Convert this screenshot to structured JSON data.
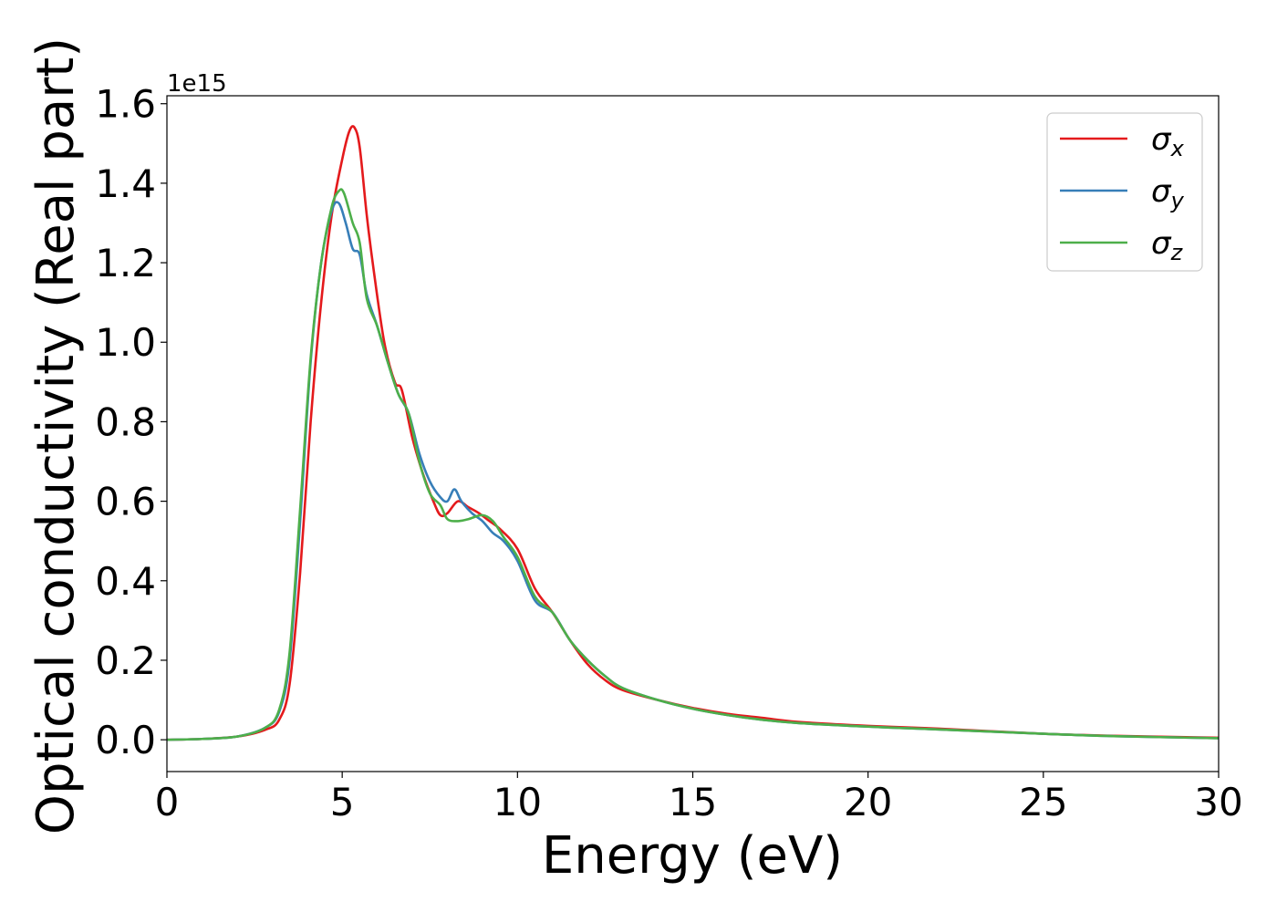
{
  "chart_data": {
    "type": "line",
    "title": "",
    "xlabel": "Energy (eV)",
    "ylabel": "Optical conductivity (Real part)",
    "y_offset_text": "1e15",
    "xlim": [
      0,
      30
    ],
    "ylim": [
      -0.08,
      1.62
    ],
    "x_ticks": [
      0,
      5,
      10,
      15,
      20,
      25,
      30
    ],
    "x_tick_labels": [
      "0",
      "5",
      "10",
      "15",
      "20",
      "25",
      "30"
    ],
    "y_ticks": [
      0.0,
      0.2,
      0.4,
      0.6,
      0.8,
      1.0,
      1.2,
      1.4,
      1.6
    ],
    "y_tick_labels": [
      "0.0",
      "0.2",
      "0.4",
      "0.6",
      "0.8",
      "1.0",
      "1.2",
      "1.4",
      "1.6"
    ],
    "grid": false,
    "legend_position": "top-right",
    "series": [
      {
        "name": "σ",
        "subscript": "x",
        "color": "#e41a1c",
        "points": [
          [
            0,
            0
          ],
          [
            1,
            0.002
          ],
          [
            2,
            0.008
          ],
          [
            2.8,
            0.025
          ],
          [
            3.2,
            0.05
          ],
          [
            3.5,
            0.14
          ],
          [
            3.8,
            0.42
          ],
          [
            4.1,
            0.8
          ],
          [
            4.4,
            1.1
          ],
          [
            4.7,
            1.32
          ],
          [
            5.0,
            1.46
          ],
          [
            5.2,
            1.53
          ],
          [
            5.35,
            1.54
          ],
          [
            5.5,
            1.49
          ],
          [
            5.7,
            1.32
          ],
          [
            5.9,
            1.18
          ],
          [
            6.2,
            1.0
          ],
          [
            6.5,
            0.9
          ],
          [
            6.7,
            0.88
          ],
          [
            7.0,
            0.76
          ],
          [
            7.3,
            0.67
          ],
          [
            7.6,
            0.6
          ],
          [
            7.8,
            0.565
          ],
          [
            8.0,
            0.57
          ],
          [
            8.3,
            0.6
          ],
          [
            8.6,
            0.585
          ],
          [
            8.9,
            0.57
          ],
          [
            9.2,
            0.55
          ],
          [
            9.5,
            0.53
          ],
          [
            10.0,
            0.48
          ],
          [
            10.5,
            0.38
          ],
          [
            11.0,
            0.32
          ],
          [
            11.5,
            0.25
          ],
          [
            12.0,
            0.19
          ],
          [
            12.5,
            0.15
          ],
          [
            13.0,
            0.125
          ],
          [
            14.0,
            0.1
          ],
          [
            15.0,
            0.08
          ],
          [
            16.0,
            0.065
          ],
          [
            17.0,
            0.055
          ],
          [
            18.0,
            0.045
          ],
          [
            20.0,
            0.035
          ],
          [
            22.0,
            0.028
          ],
          [
            25.0,
            0.015
          ],
          [
            27.0,
            0.01
          ],
          [
            30.0,
            0.005
          ]
        ]
      },
      {
        "name": "σ",
        "subscript": "y",
        "color": "#377eb8",
        "points": [
          [
            0,
            0
          ],
          [
            1,
            0.002
          ],
          [
            2,
            0.008
          ],
          [
            2.8,
            0.03
          ],
          [
            3.2,
            0.07
          ],
          [
            3.5,
            0.2
          ],
          [
            3.8,
            0.55
          ],
          [
            4.1,
            0.95
          ],
          [
            4.4,
            1.2
          ],
          [
            4.7,
            1.33
          ],
          [
            4.9,
            1.35
          ],
          [
            5.1,
            1.3
          ],
          [
            5.3,
            1.235
          ],
          [
            5.5,
            1.22
          ],
          [
            5.7,
            1.12
          ],
          [
            6.0,
            1.04
          ],
          [
            6.3,
            0.95
          ],
          [
            6.6,
            0.87
          ],
          [
            6.9,
            0.82
          ],
          [
            7.2,
            0.72
          ],
          [
            7.5,
            0.65
          ],
          [
            7.8,
            0.61
          ],
          [
            8.0,
            0.6
          ],
          [
            8.2,
            0.63
          ],
          [
            8.4,
            0.6
          ],
          [
            8.7,
            0.57
          ],
          [
            9.0,
            0.55
          ],
          [
            9.3,
            0.52
          ],
          [
            9.6,
            0.5
          ],
          [
            10.0,
            0.45
          ],
          [
            10.5,
            0.35
          ],
          [
            11.0,
            0.32
          ],
          [
            11.5,
            0.25
          ],
          [
            12.0,
            0.2
          ],
          [
            12.5,
            0.16
          ],
          [
            13.0,
            0.13
          ],
          [
            14.0,
            0.1
          ],
          [
            15.0,
            0.078
          ],
          [
            16.0,
            0.062
          ],
          [
            17.0,
            0.05
          ],
          [
            18.0,
            0.042
          ],
          [
            20.0,
            0.033
          ],
          [
            22.0,
            0.026
          ],
          [
            25.0,
            0.015
          ],
          [
            27.0,
            0.009
          ],
          [
            30.0,
            0.004
          ]
        ]
      },
      {
        "name": "σ",
        "subscript": "z",
        "color": "#4daf4a",
        "points": [
          [
            0,
            0
          ],
          [
            1,
            0.002
          ],
          [
            2,
            0.008
          ],
          [
            2.8,
            0.03
          ],
          [
            3.2,
            0.075
          ],
          [
            3.5,
            0.22
          ],
          [
            3.8,
            0.58
          ],
          [
            4.1,
            0.96
          ],
          [
            4.4,
            1.2
          ],
          [
            4.7,
            1.34
          ],
          [
            4.9,
            1.38
          ],
          [
            5.05,
            1.375
          ],
          [
            5.3,
            1.3
          ],
          [
            5.5,
            1.25
          ],
          [
            5.7,
            1.11
          ],
          [
            6.0,
            1.04
          ],
          [
            6.3,
            0.95
          ],
          [
            6.6,
            0.87
          ],
          [
            6.9,
            0.82
          ],
          [
            7.2,
            0.7
          ],
          [
            7.5,
            0.62
          ],
          [
            7.8,
            0.59
          ],
          [
            8.0,
            0.555
          ],
          [
            8.3,
            0.55
          ],
          [
            8.6,
            0.555
          ],
          [
            9.0,
            0.565
          ],
          [
            9.3,
            0.55
          ],
          [
            9.6,
            0.51
          ],
          [
            10.0,
            0.46
          ],
          [
            10.5,
            0.36
          ],
          [
            11.0,
            0.32
          ],
          [
            11.5,
            0.25
          ],
          [
            12.0,
            0.2
          ],
          [
            12.5,
            0.16
          ],
          [
            13.0,
            0.13
          ],
          [
            14.0,
            0.1
          ],
          [
            15.0,
            0.078
          ],
          [
            16.0,
            0.062
          ],
          [
            17.0,
            0.05
          ],
          [
            18.0,
            0.042
          ],
          [
            20.0,
            0.033
          ],
          [
            22.0,
            0.026
          ],
          [
            25.0,
            0.015
          ],
          [
            27.0,
            0.009
          ],
          [
            30.0,
            0.004
          ]
        ]
      }
    ]
  }
}
